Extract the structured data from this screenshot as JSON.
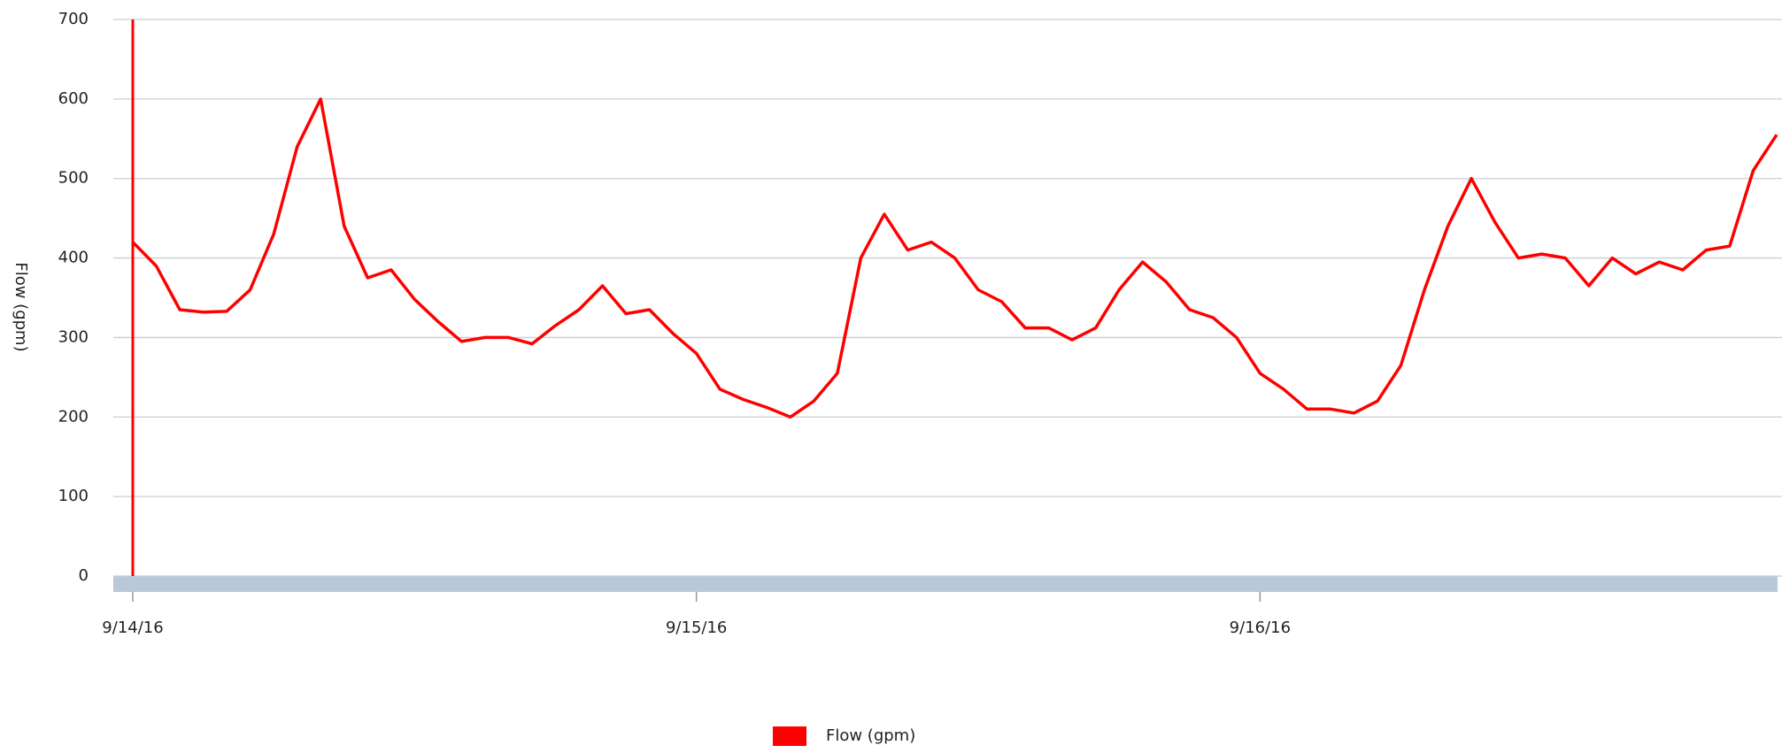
{
  "chart_data": {
    "type": "line",
    "y_label": "Flow (gpm)",
    "categories": [
      "9/14/16",
      null,
      null,
      null,
      null,
      null,
      null,
      null,
      null,
      null,
      null,
      null,
      null,
      null,
      null,
      null,
      null,
      null,
      null,
      null,
      null,
      null,
      null,
      null,
      "9/15/16",
      null,
      null,
      null,
      null,
      null,
      null,
      null,
      null,
      null,
      null,
      null,
      null,
      null,
      null,
      null,
      null,
      null,
      null,
      null,
      null,
      null,
      null,
      null,
      "9/16/16",
      null,
      null,
      null,
      null,
      null,
      null,
      null,
      null,
      null,
      null,
      null,
      null,
      null,
      null,
      null,
      null,
      null,
      null,
      null,
      null,
      null,
      null
    ],
    "series": [
      {
        "name": "Flow (gpm)",
        "color": "#ff0000",
        "values": [
          420,
          390,
          335,
          332,
          333,
          360,
          430,
          540,
          600,
          440,
          375,
          385,
          348,
          320,
          295,
          300,
          300,
          292,
          315,
          335,
          365,
          330,
          335,
          305,
          280,
          235,
          222,
          212,
          200,
          220,
          255,
          400,
          455,
          410,
          420,
          400,
          360,
          345,
          312,
          312,
          297,
          312,
          360,
          395,
          370,
          335,
          325,
          300,
          255,
          235,
          210,
          210,
          205,
          220,
          265,
          360,
          440,
          500,
          445,
          400,
          405,
          400,
          365,
          400,
          380,
          395,
          385,
          410,
          415,
          510,
          555
        ]
      }
    ],
    "ylim": [
      0,
      700
    ],
    "yticks": [
      0,
      100,
      200,
      300,
      400,
      500,
      600,
      700
    ],
    "grid": true,
    "legend": "bottom"
  }
}
